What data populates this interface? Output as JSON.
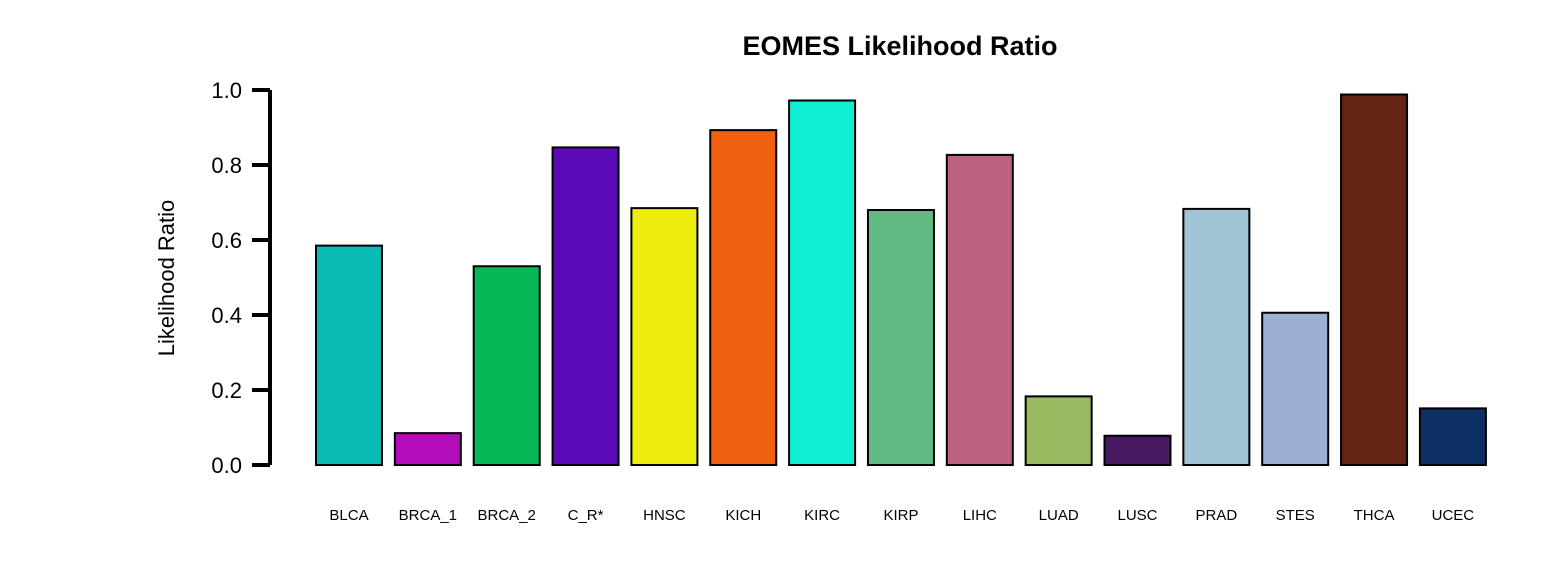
{
  "chart_data": {
    "type": "bar",
    "title": "EOMES Likelihood Ratio",
    "xlabel": "",
    "ylabel": "Likelihood Ratio",
    "ylim": [
      0,
      1.0
    ],
    "yticks": [
      "0.0",
      "0.2",
      "0.4",
      "0.6",
      "0.8",
      "1.0"
    ],
    "grid": false,
    "legend": "none",
    "categories": [
      "BLCA",
      "BRCA_1",
      "BRCA_2",
      "C_R*",
      "HNSC",
      "KICH",
      "KIRC",
      "KIRP",
      "LIHC",
      "LUAD",
      "LUSC",
      "PRAD",
      "STES",
      "THCA",
      "UCEC"
    ],
    "values": [
      0.585,
      0.085,
      0.53,
      0.847,
      0.685,
      0.893,
      0.972,
      0.68,
      0.827,
      0.183,
      0.078,
      0.683,
      0.406,
      0.988,
      0.151
    ],
    "colors": [
      "#0ABBB5",
      "#B30CBB",
      "#08B857",
      "#5B0AB8",
      "#EEEE0C",
      "#F06010",
      "#0DEED2",
      "#60BA82",
      "#BC6180",
      "#98BB61",
      "#481A62",
      "#A1C4D4",
      "#9FAED3",
      "#652411",
      "#0D3064"
    ],
    "bar_outline": "#000000",
    "axis_color": "#000000"
  }
}
